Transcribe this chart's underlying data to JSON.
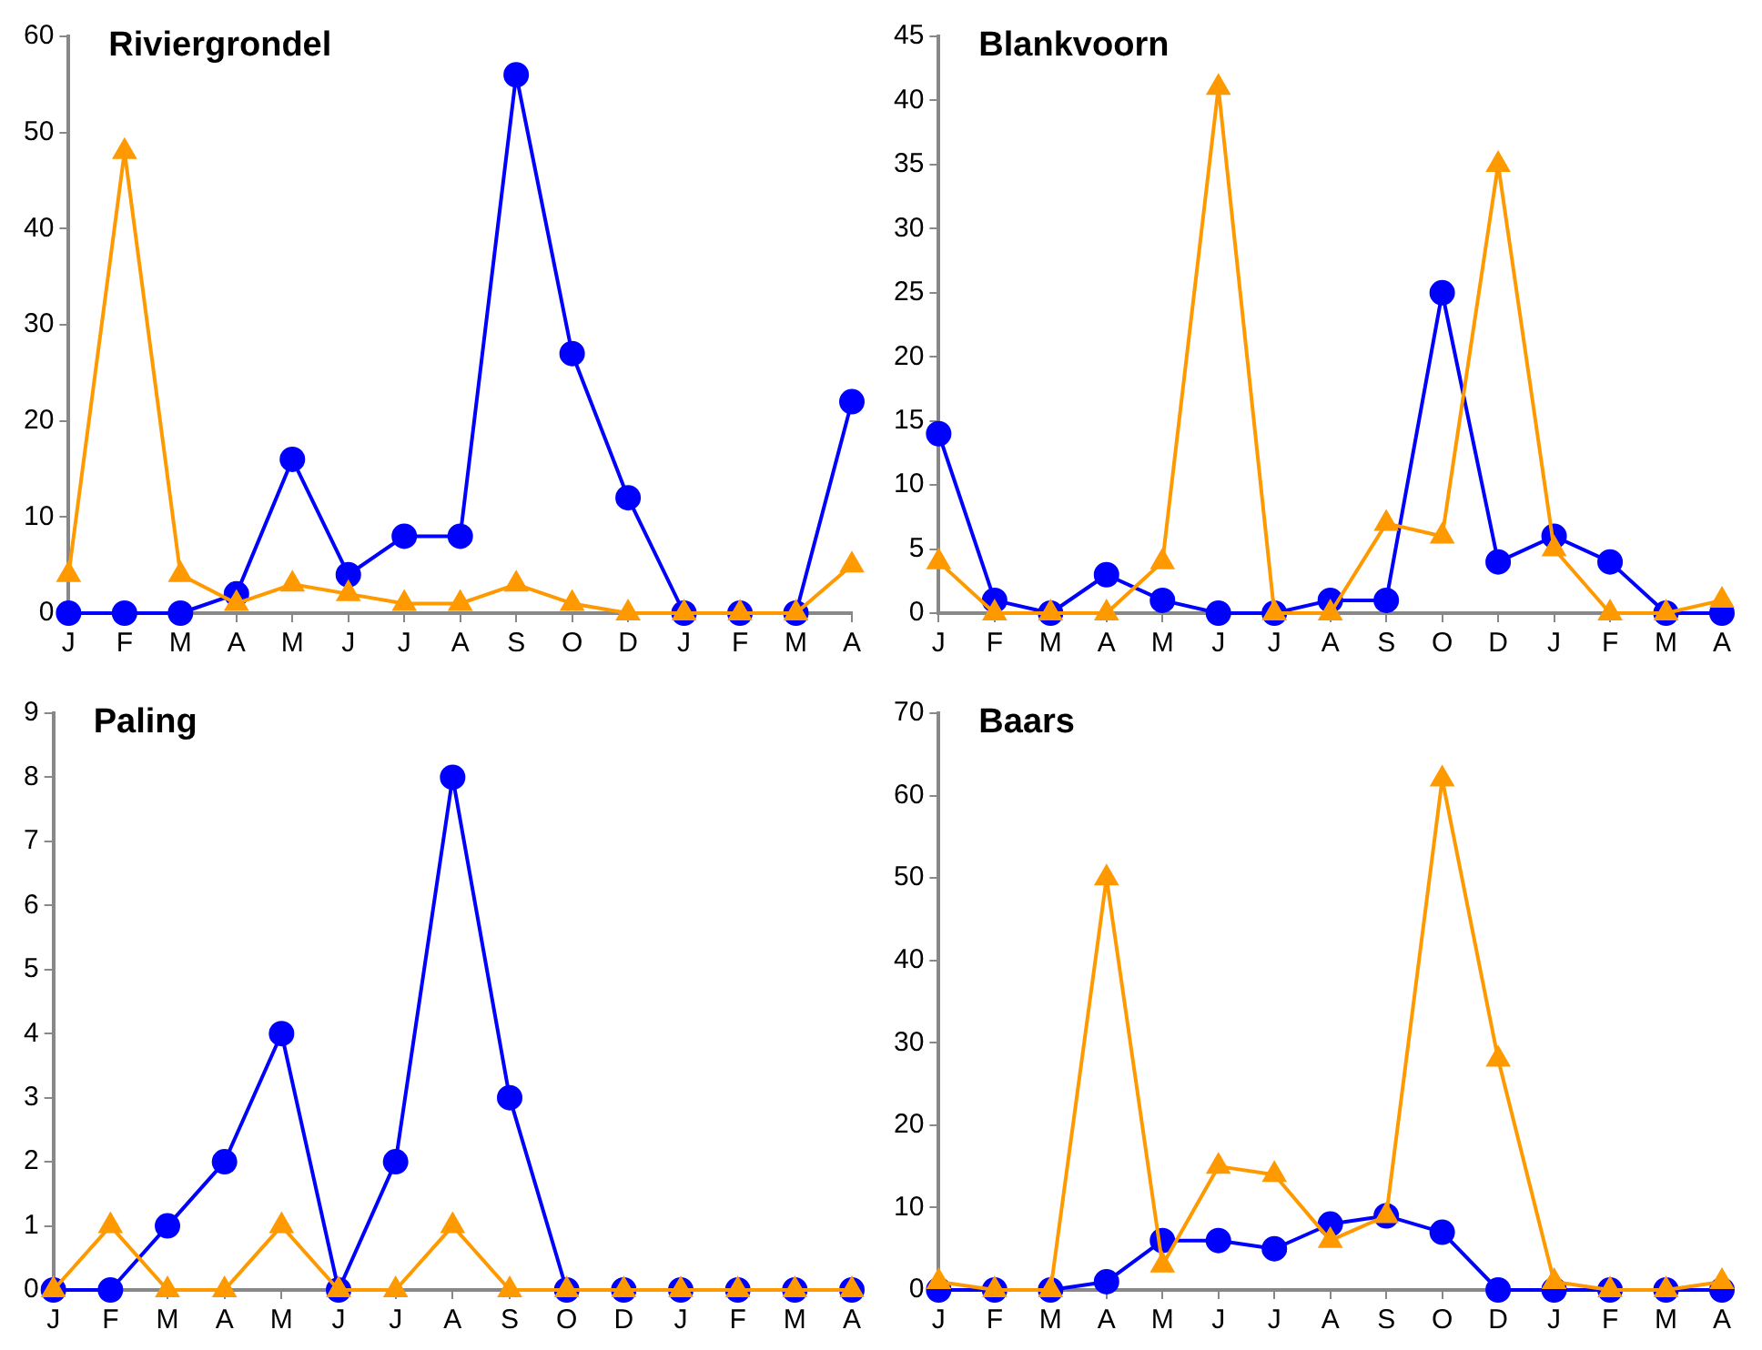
{
  "chart_data": [
    {
      "type": "line",
      "title": "Riviergrondel",
      "grid": false,
      "categories": [
        "J",
        "F",
        "M",
        "A",
        "M",
        "J",
        "J",
        "A",
        "S",
        "O",
        "D",
        "J",
        "F",
        "M",
        "A"
      ],
      "ylim": [
        0,
        60
      ],
      "yticks": [
        0,
        10,
        20,
        30,
        40,
        50,
        60
      ],
      "series": [
        {
          "color": "#0000ff",
          "marker": "circle",
          "values": [
            0,
            0,
            0,
            2,
            16,
            4,
            8,
            8,
            56,
            27,
            12,
            0,
            0,
            0,
            22
          ]
        },
        {
          "color": "#ff9900",
          "marker": "triangle",
          "values": [
            4,
            48,
            4,
            1,
            3,
            2,
            1,
            1,
            3,
            1,
            0,
            0,
            0,
            0,
            5
          ]
        }
      ]
    },
    {
      "type": "line",
      "title": "Blankvoorn",
      "grid": false,
      "categories": [
        "J",
        "F",
        "M",
        "A",
        "M",
        "J",
        "J",
        "A",
        "S",
        "O",
        "D",
        "J",
        "F",
        "M",
        "A"
      ],
      "ylim": [
        0,
        45
      ],
      "yticks": [
        0,
        5,
        10,
        15,
        20,
        25,
        30,
        35,
        40,
        45
      ],
      "series": [
        {
          "color": "#0000ff",
          "marker": "circle",
          "values": [
            14,
            1,
            0,
            3,
            1,
            0,
            0,
            1,
            1,
            25,
            4,
            6,
            4,
            0,
            0
          ]
        },
        {
          "color": "#ff9900",
          "marker": "triangle",
          "values": [
            4,
            0,
            0,
            0,
            4,
            41,
            0,
            0,
            7,
            6,
            35,
            5,
            0,
            0,
            1
          ]
        }
      ]
    },
    {
      "type": "line",
      "title": "Paling",
      "grid": false,
      "categories": [
        "J",
        "F",
        "M",
        "A",
        "M",
        "J",
        "J",
        "A",
        "S",
        "O",
        "D",
        "J",
        "F",
        "M",
        "A"
      ],
      "ylim": [
        0,
        9
      ],
      "yticks": [
        0,
        1,
        2,
        3,
        4,
        5,
        6,
        7,
        8,
        9
      ],
      "series": [
        {
          "color": "#0000ff",
          "marker": "circle",
          "values": [
            0,
            0,
            1,
            2,
            4,
            0,
            2,
            8,
            3,
            0,
            0,
            0,
            0,
            0,
            0
          ]
        },
        {
          "color": "#ff9900",
          "marker": "triangle",
          "values": [
            0,
            1,
            0,
            0,
            1,
            0,
            0,
            1,
            0,
            0,
            0,
            0,
            0,
            0,
            0
          ]
        }
      ]
    },
    {
      "type": "line",
      "title": "Baars",
      "grid": false,
      "categories": [
        "J",
        "F",
        "M",
        "A",
        "M",
        "J",
        "J",
        "A",
        "S",
        "O",
        "D",
        "J",
        "F",
        "M",
        "A"
      ],
      "ylim": [
        0,
        70
      ],
      "yticks": [
        0,
        10,
        20,
        30,
        40,
        50,
        60,
        70
      ],
      "series": [
        {
          "color": "#0000ff",
          "marker": "circle",
          "values": [
            0,
            0,
            0,
            1,
            6,
            6,
            5,
            8,
            9,
            7,
            0,
            0,
            0,
            0,
            0
          ]
        },
        {
          "color": "#ff9900",
          "marker": "triangle",
          "values": [
            1,
            0,
            0,
            50,
            3,
            15,
            14,
            6,
            9,
            62,
            28,
            1,
            0,
            0,
            1
          ]
        }
      ]
    }
  ]
}
